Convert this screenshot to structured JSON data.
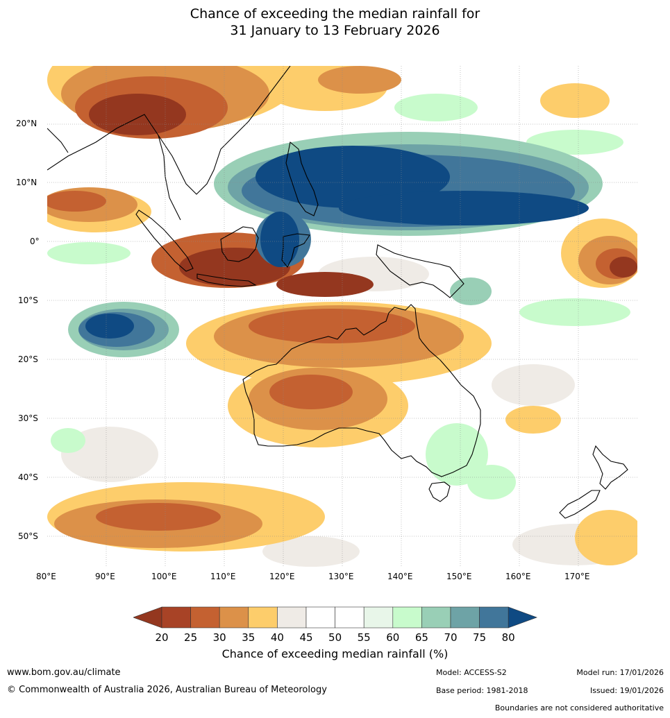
{
  "title": {
    "line1": "Chance of exceeding the median rainfall for",
    "line2": "31 January to 13 February 2026"
  },
  "map": {
    "lat_ticks": [
      "20°N",
      "10°N",
      "0°",
      "10°S",
      "20°S",
      "30°S",
      "40°S",
      "50°S"
    ],
    "lon_ticks": [
      "80°E",
      "90°E",
      "100°E",
      "110°E",
      "120°E",
      "130°E",
      "140°E",
      "150°E",
      "160°E",
      "170°E"
    ]
  },
  "colorbar": {
    "title": "Chance of exceeding median rainfall (%)",
    "ticks": [
      "20",
      "25",
      "30",
      "35",
      "40",
      "45",
      "50",
      "55",
      "60",
      "65",
      "70",
      "75",
      "80"
    ],
    "colors": [
      "#a84326",
      "#c46131",
      "#dc9149",
      "#fdcd6b",
      "#efebe6",
      "#ffffff",
      "#ffffff",
      "#e8f6e9",
      "#c8fbcc",
      "#99cfb6",
      "#6ea3a6",
      "#41769a"
    ],
    "under_color": "#94371f",
    "over_color": "#0f4a83"
  },
  "footer": {
    "website": "www.bom.gov.au/climate",
    "copyright": "© Commonwealth of Australia 2026, Australian Bureau of Meteorology",
    "model": "Model: ACCESS-S2",
    "base_period": "Base period: 1981-2018",
    "model_run": "Model run: 17/01/2026",
    "issued": "Issued: 19/01/2026",
    "disclaimer": "Boundaries are not considered authoritative"
  }
}
